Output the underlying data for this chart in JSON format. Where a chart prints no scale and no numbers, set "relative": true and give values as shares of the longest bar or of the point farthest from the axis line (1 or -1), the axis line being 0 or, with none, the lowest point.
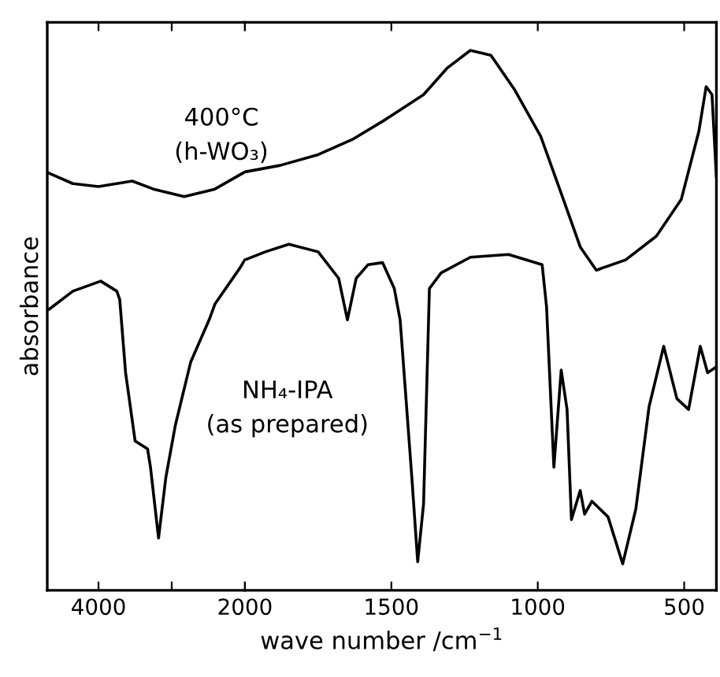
{
  "chart_data": [
    {
      "type": "line",
      "ylabel": "absorbance",
      "relative": true,
      "legend": false,
      "grid": false,
      "marker": "none",
      "line_style": "solid",
      "xlim": [
        4700,
        2000
      ],
      "xticks": [
        4000,
        {
          "value": 3000,
          "label": null
        },
        2000
      ],
      "series": [
        {
          "color": "#000000",
          "x": [
            4680,
            4350,
            4000,
            3540,
            3250,
            2830,
            2410,
            2000
          ],
          "values": [
            0.997,
            0.972,
            0.965,
            0.978,
            0.959,
            0.941,
            0.959,
            1.0
          ]
        },
        {
          "color": "#000000",
          "x": [
            4680,
            4350,
            3970,
            3750,
            3710,
            3630,
            3500,
            3330,
            3290,
            3180,
            3080,
            2950,
            2740,
            2490,
            2410,
            2070,
            2000
          ],
          "values": [
            0.671,
            0.715,
            0.739,
            0.715,
            0.695,
            0.52,
            0.357,
            0.338,
            0.294,
            0.125,
            0.27,
            0.395,
            0.546,
            0.646,
            0.684,
            0.77,
            0.79
          ]
        }
      ]
    },
    {
      "type": "line",
      "xlabel": "wave number /cm$^{−1}$",
      "relative": true,
      "legend": false,
      "grid": false,
      "marker": "none",
      "line_style": "solid",
      "xlim": [
        2000,
        390
      ],
      "xticks": [
        {
          "value": 2000,
          "label": null
        },
        1500,
        1000,
        500
      ],
      "series": [
        {
          "name": "400°C\n(h-WO₃)",
          "color": "#000000",
          "x": [
            2000,
            1880,
            1750,
            1630,
            1520,
            1390,
            1310,
            1230,
            1160,
            1080,
            990,
            925,
            855,
            800,
            700,
            595,
            510,
            450,
            425,
            405,
            390
          ],
          "values": [
            0.775,
            0.787,
            0.807,
            0.836,
            0.872,
            0.918,
            0.967,
            1.0,
            0.991,
            0.928,
            0.841,
            0.743,
            0.636,
            0.593,
            0.612,
            0.656,
            0.724,
            0.85,
            0.933,
            0.918,
            0.764
          ]
        },
        {
          "name": "NH₄-IPA\n(as prepared)",
          "color": "#000000",
          "x": [
            2000,
            1930,
            1850,
            1750,
            1680,
            1650,
            1620,
            1580,
            1530,
            1490,
            1470,
            1430,
            1410,
            1390,
            1370,
            1330,
            1230,
            1100,
            985,
            970,
            945,
            920,
            900,
            885,
            855,
            840,
            815,
            760,
            710,
            665,
            620,
            570,
            525,
            485,
            445,
            420,
            390
          ],
          "values": [
            0.612,
            0.627,
            0.641,
            0.627,
            0.578,
            0.501,
            0.578,
            0.603,
            0.607,
            0.559,
            0.501,
            0.209,
            0.053,
            0.16,
            0.559,
            0.588,
            0.617,
            0.622,
            0.603,
            0.525,
            0.228,
            0.408,
            0.335,
            0.131,
            0.185,
            0.141,
            0.165,
            0.136,
            0.049,
            0.151,
            0.34,
            0.452,
            0.355,
            0.335,
            0.452,
            0.403,
            0.414
          ]
        }
      ]
    }
  ]
}
